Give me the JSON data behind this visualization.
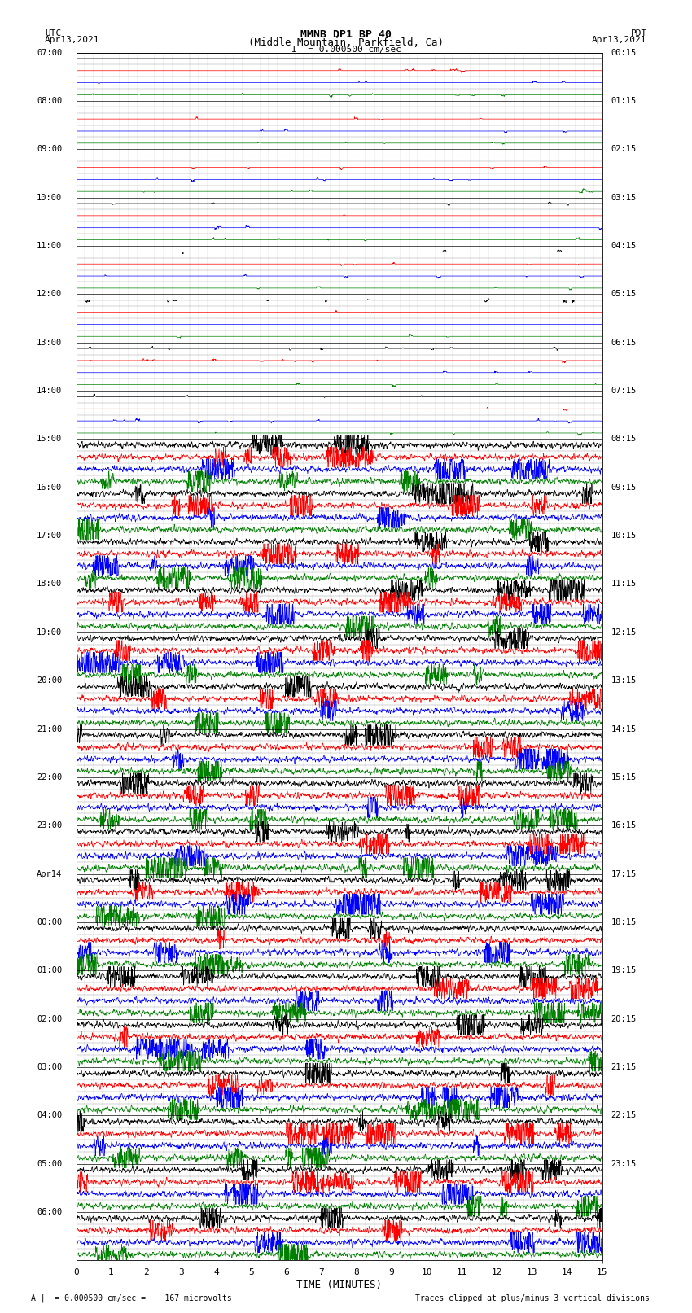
{
  "title_line1": "MMNB DP1 BP 40",
  "title_line2": "(Middle Mountain, Parkfield, Ca)",
  "scale_text": "I  = 0.000500 cm/sec",
  "utc_label": "UTC",
  "utc_date": "Apr13,2021",
  "pdt_label": "PDT",
  "pdt_date": "Apr13,2021",
  "xlabel": "TIME (MINUTES)",
  "footer_left": "A |  = 0.000500 cm/sec =    167 microvolts",
  "footer_right": "Traces clipped at plus/minus 3 vertical divisions",
  "background_color": "#ffffff",
  "left_times": [
    "07:00",
    "",
    "",
    "",
    "08:00",
    "",
    "",
    "",
    "09:00",
    "",
    "",
    "",
    "10:00",
    "",
    "",
    "",
    "11:00",
    "",
    "",
    "",
    "12:00",
    "",
    "",
    "",
    "13:00",
    "",
    "",
    "",
    "14:00",
    "",
    "",
    "",
    "15:00",
    "",
    "",
    "",
    "16:00",
    "",
    "",
    "",
    "17:00",
    "",
    "",
    "",
    "18:00",
    "",
    "",
    "",
    "19:00",
    "",
    "",
    "",
    "20:00",
    "",
    "",
    "",
    "21:00",
    "",
    "",
    "",
    "22:00",
    "",
    "",
    "",
    "23:00",
    "",
    "",
    "",
    "Apr14",
    "",
    "",
    "",
    "00:00",
    "",
    "",
    "",
    "01:00",
    "",
    "",
    "",
    "02:00",
    "",
    "",
    "",
    "03:00",
    "",
    "",
    "",
    "04:00",
    "",
    "",
    "",
    "05:00",
    "",
    "",
    "",
    "06:00",
    "",
    "",
    ""
  ],
  "right_times": [
    "00:15",
    "",
    "",
    "",
    "01:15",
    "",
    "",
    "",
    "02:15",
    "",
    "",
    "",
    "03:15",
    "",
    "",
    "",
    "04:15",
    "",
    "",
    "",
    "05:15",
    "",
    "",
    "",
    "06:15",
    "",
    "",
    "",
    "07:15",
    "",
    "",
    "",
    "08:15",
    "",
    "",
    "",
    "09:15",
    "",
    "",
    "",
    "10:15",
    "",
    "",
    "",
    "11:15",
    "",
    "",
    "",
    "12:15",
    "",
    "",
    "",
    "13:15",
    "",
    "",
    "",
    "14:15",
    "",
    "",
    "",
    "15:15",
    "",
    "",
    "",
    "16:15",
    "",
    "",
    "",
    "17:15",
    "",
    "",
    "",
    "18:15",
    "",
    "",
    "",
    "19:15",
    "",
    "",
    "",
    "20:15",
    "",
    "",
    "",
    "21:15",
    "",
    "",
    "",
    "22:15",
    "",
    "",
    "",
    "23:15",
    "",
    "",
    ""
  ],
  "n_hour_rows": 25,
  "n_subrows": 4,
  "colors_cycle": [
    "#000000",
    "#ff0000",
    "#0000ff",
    "#008000"
  ],
  "quiet_hour_rows": 8,
  "x_ticks": [
    0,
    1,
    2,
    3,
    4,
    5,
    6,
    7,
    8,
    9,
    10,
    11,
    12,
    13,
    14,
    15
  ],
  "x_min": 0,
  "x_max": 15,
  "trace_amp_quiet": 0.008,
  "trace_amp_active": 0.28,
  "spike_amp_quiet": 0.12
}
